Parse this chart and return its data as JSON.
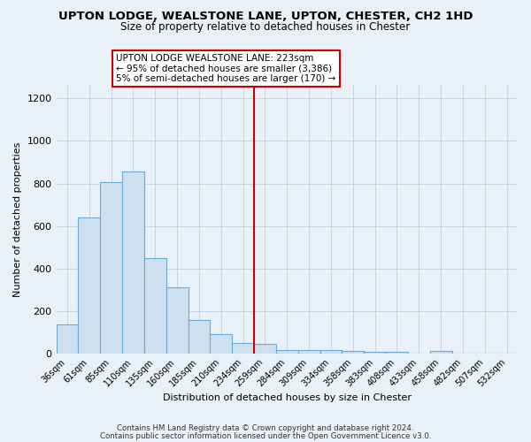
{
  "title1": "UPTON LODGE, WEALSTONE LANE, UPTON, CHESTER, CH2 1HD",
  "title2": "Size of property relative to detached houses in Chester",
  "xlabel": "Distribution of detached houses by size in Chester",
  "ylabel": "Number of detached properties",
  "footer1": "Contains HM Land Registry data © Crown copyright and database right 2024.",
  "footer2": "Contains public sector information licensed under the Open Government Licence v3.0.",
  "categories": [
    "36sqm",
    "61sqm",
    "85sqm",
    "110sqm",
    "135sqm",
    "160sqm",
    "185sqm",
    "210sqm",
    "234sqm",
    "259sqm",
    "284sqm",
    "309sqm",
    "334sqm",
    "358sqm",
    "383sqm",
    "408sqm",
    "433sqm",
    "458sqm",
    "482sqm",
    "507sqm",
    "532sqm"
  ],
  "values": [
    137,
    640,
    805,
    858,
    447,
    310,
    157,
    92,
    50,
    43,
    15,
    17,
    15,
    10,
    8,
    8,
    0,
    12,
    0,
    0,
    0
  ],
  "bar_color": "#cce0f0",
  "bar_edge_color": "#6aaad4",
  "background_color": "#e8f0f8",
  "grid_color": "#c8d4e4",
  "red_line_x": 8.5,
  "annotation_text": "UPTON LODGE WEALSTONE LANE: 223sqm\n← 95% of detached houses are smaller (3,386)\n5% of semi-detached houses are larger (170) →",
  "annotation_box_color": "#ffffff",
  "annotation_box_edge": "#cc0000",
  "ylim": [
    0,
    1260
  ],
  "yticks": [
    0,
    200,
    400,
    600,
    800,
    1000,
    1200
  ]
}
